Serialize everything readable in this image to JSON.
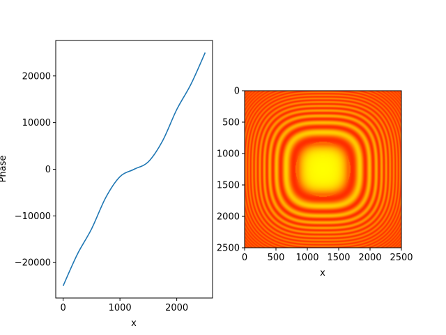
{
  "chart_data": [
    {
      "type": "line",
      "title": "",
      "xlabel": "x",
      "ylabel": "Phase",
      "xlim": [
        -130,
        2630
      ],
      "ylim": [
        -27600,
        27600
      ],
      "xticks": [
        0,
        1000,
        2000
      ],
      "xtick_labels": [
        "0",
        "1000",
        "2000"
      ],
      "yticks": [
        -20000,
        -10000,
        0,
        10000,
        20000
      ],
      "ytick_labels": [
        "−20000",
        "−10000",
        "0",
        "10000",
        "20000"
      ],
      "grid": false,
      "series": [
        {
          "color": "#1f77b4",
          "x": [
            0,
            250,
            500,
            750,
            1000,
            1250,
            1500,
            1750,
            2000,
            2250,
            2500
          ],
          "y": [
            -25000,
            -18225,
            -12800,
            -6075,
            -1600,
            0,
            1600,
            6075,
            12800,
            18225,
            25000
          ]
        }
      ]
    },
    {
      "type": "heatmap",
      "title": "",
      "xlabel": "x",
      "ylabel": "",
      "xlim": [
        0,
        2500
      ],
      "ylim": [
        2500,
        0
      ],
      "xticks": [
        0,
        500,
        1000,
        1500,
        2000,
        2500
      ],
      "xtick_labels": [
        "0",
        "500",
        "1000",
        "1500",
        "2000",
        "2500"
      ],
      "yticks": [
        0,
        500,
        1000,
        1500,
        2000,
        2500
      ],
      "ytick_labels": [
        "0",
        "500",
        "1000",
        "1500",
        "2000",
        "2500"
      ],
      "colormap": "autumn",
      "colors": {
        "low": "#ff0000",
        "high": "#ffff00"
      }
    }
  ]
}
